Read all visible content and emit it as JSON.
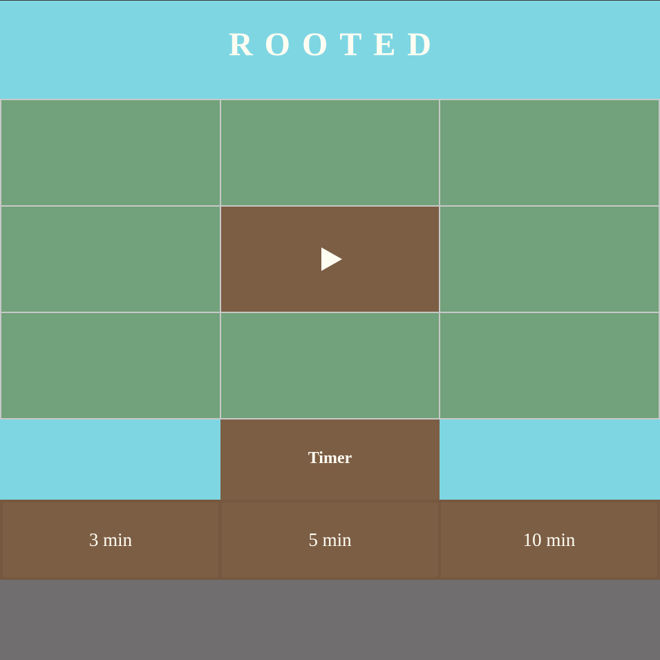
{
  "header": {
    "title": "ROOTED"
  },
  "board": {
    "play_icon": "play-icon"
  },
  "timer": {
    "label": "Timer",
    "options": [
      "3 min",
      "5 min",
      "10 min"
    ]
  },
  "colors": {
    "sky": "#7fd6e3",
    "grass": "#72a27b",
    "soil": "#7c5e45",
    "ground": "#706e6f",
    "text": "#fffdf2"
  }
}
